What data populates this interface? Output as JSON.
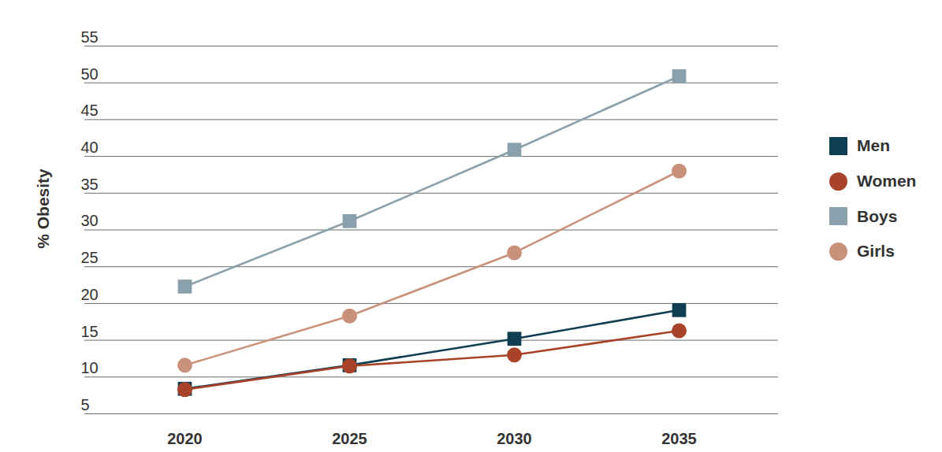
{
  "chart_data": {
    "type": "line",
    "ylabel": "% Obesity",
    "categories": [
      "2020",
      "2025",
      "2030",
      "2035"
    ],
    "series": [
      {
        "name": "Men",
        "color": "#0f3d52",
        "marker": "square",
        "values": [
          8.4,
          11.6,
          15.2,
          19.1
        ]
      },
      {
        "name": "Women",
        "color": "#a8432a",
        "marker": "circle",
        "values": [
          8.3,
          11.5,
          13.0,
          16.3
        ]
      },
      {
        "name": "Boys",
        "color": "#8aa0ac",
        "marker": "square",
        "values": [
          22.3,
          31.2,
          40.9,
          50.9
        ]
      },
      {
        "name": "Girls",
        "color": "#c9917a",
        "marker": "circle",
        "values": [
          11.6,
          18.3,
          26.9,
          38.0
        ]
      }
    ],
    "ylim": [
      5,
      55
    ],
    "yticks": [
      5,
      10,
      15,
      20,
      25,
      30,
      35,
      40,
      45,
      50,
      55
    ],
    "grid": true,
    "legend": "right"
  }
}
